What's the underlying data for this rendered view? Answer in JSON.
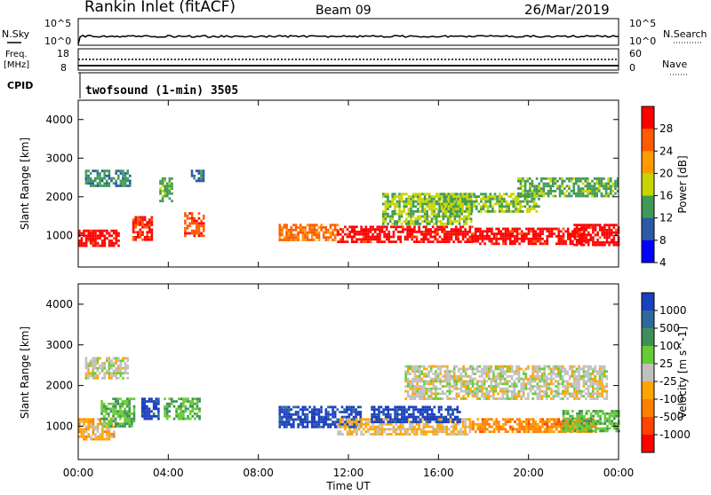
{
  "header": {
    "title": "Rankin Inlet (fitACF)",
    "beam": "Beam 09",
    "date": "26/Mar/2019"
  },
  "strip": {
    "nsky_label": "N.Sky",
    "nsky_ticks": [
      "10^5",
      "10^0"
    ],
    "nsearch_label": "N.Search",
    "nsearch_ticks": [
      "10^5",
      "10^0"
    ],
    "freq_label_1": "Freq.",
    "freq_label_2": "[MHz]",
    "freq_ticks": [
      "18",
      "8"
    ],
    "nave_label": "Nave",
    "nave_ticks": [
      "60",
      "0"
    ],
    "cpid_label": "CPID",
    "cpid_text": "twofsound (1-min) 3505"
  },
  "axes": {
    "ylabel": "Slant Range [km]",
    "yticks": [
      "4000",
      "3000",
      "2000",
      "1000"
    ],
    "xlabel": "Time UT",
    "xticks": [
      "00:00",
      "04:00",
      "08:00",
      "12:00",
      "16:00",
      "20:00",
      "00:00"
    ]
  },
  "power_scale": {
    "label": "Power [dB]",
    "ticks": [
      "28",
      "24",
      "20",
      "16",
      "12",
      "8",
      "4"
    ],
    "colors": [
      "#ff0000",
      "#ff5a00",
      "#ff9a00",
      "#c8d400",
      "#3f9a55",
      "#2a5aa8",
      "#0000ff"
    ]
  },
  "velocity_scale": {
    "label": "Velocity [m s^-1]",
    "ticks": [
      "1000",
      "500",
      "100",
      "25",
      "-25",
      "-100",
      "-500",
      "-1000"
    ],
    "colors": [
      "#1a3fbf",
      "#2d6a9a",
      "#3f8f5a",
      "#66cc33",
      "#c0c0c0",
      "#ffa500",
      "#ff7f00",
      "#ff4400",
      "#ff0000"
    ]
  },
  "chart_data": [
    {
      "type": "heatmap",
      "name": "power",
      "x_range_hours": [
        0,
        24
      ],
      "y_range_km": [
        180,
        4500
      ],
      "grid": false,
      "value_range_db": [
        0,
        32
      ],
      "regions": [
        {
          "t0": 0.0,
          "t1": 1.8,
          "r0": 750,
          "r1": 1150,
          "v": 30
        },
        {
          "t0": 0.3,
          "t1": 2.3,
          "r0": 2300,
          "r1": 2700,
          "v": 10
        },
        {
          "t0": 2.4,
          "t1": 3.3,
          "r0": 900,
          "r1": 1500,
          "v": 28
        },
        {
          "t0": 3.6,
          "t1": 4.2,
          "r0": 1900,
          "r1": 2500,
          "v": 12
        },
        {
          "t0": 4.7,
          "t1": 5.6,
          "r0": 1000,
          "r1": 1600,
          "v": 26
        },
        {
          "t0": 5.0,
          "t1": 5.6,
          "r0": 2400,
          "r1": 2700,
          "v": 8
        },
        {
          "t0": 8.9,
          "t1": 11.5,
          "r0": 900,
          "r1": 1300,
          "v": 24
        },
        {
          "t0": 11.5,
          "t1": 17.5,
          "r0": 850,
          "r1": 1250,
          "v": 30
        },
        {
          "t0": 13.5,
          "t1": 17.5,
          "r0": 1300,
          "r1": 2100,
          "v": 14
        },
        {
          "t0": 16.0,
          "t1": 20.5,
          "r0": 1600,
          "r1": 2100,
          "v": 14
        },
        {
          "t0": 17.5,
          "t1": 22.5,
          "r0": 800,
          "r1": 1200,
          "v": 30
        },
        {
          "t0": 19.5,
          "t1": 24.0,
          "r0": 2000,
          "r1": 2500,
          "v": 12
        },
        {
          "t0": 22.0,
          "t1": 24.0,
          "r0": 750,
          "r1": 1300,
          "v": 30
        }
      ]
    },
    {
      "type": "heatmap",
      "name": "velocity",
      "x_range_hours": [
        0,
        24
      ],
      "y_range_km": [
        180,
        4500
      ],
      "grid": false,
      "value_range_ms": [
        -1000,
        1000
      ],
      "regions": [
        {
          "t0": 0.0,
          "t1": 1.6,
          "r0": 700,
          "r1": 1200,
          "v": -200
        },
        {
          "t0": 0.3,
          "t1": 2.2,
          "r0": 2200,
          "r1": 2700,
          "v": 0
        },
        {
          "t0": 1.0,
          "t1": 2.5,
          "r0": 1000,
          "r1": 1700,
          "v": 300
        },
        {
          "t0": 2.8,
          "t1": 3.6,
          "r0": 1200,
          "r1": 1700,
          "v": 900
        },
        {
          "t0": 3.8,
          "t1": 5.4,
          "r0": 1200,
          "r1": 1700,
          "v": 300
        },
        {
          "t0": 8.9,
          "t1": 12.5,
          "r0": 1000,
          "r1": 1500,
          "v": 900
        },
        {
          "t0": 11.5,
          "t1": 17.5,
          "r0": 800,
          "r1": 1200,
          "v": -150
        },
        {
          "t0": 13.0,
          "t1": 17.0,
          "r0": 1100,
          "r1": 1500,
          "v": 900
        },
        {
          "t0": 14.5,
          "t1": 23.5,
          "r0": 1700,
          "r1": 2500,
          "v": 0
        },
        {
          "t0": 17.5,
          "t1": 23.0,
          "r0": 850,
          "r1": 1200,
          "v": -400
        },
        {
          "t0": 21.5,
          "t1": 24.0,
          "r0": 900,
          "r1": 1400,
          "v": 300
        }
      ]
    }
  ]
}
